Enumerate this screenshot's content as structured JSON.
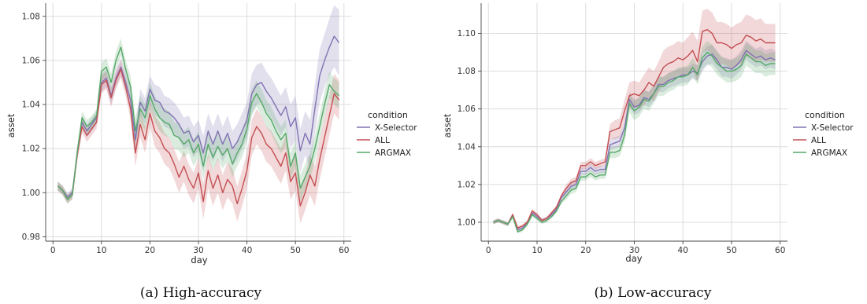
{
  "figure": {
    "captions": [
      "(a) High-accuracy",
      "(b) Low-accuracy"
    ]
  },
  "chart_data": [
    {
      "type": "line",
      "xlabel": "day",
      "ylabel": "asset",
      "xlim": [
        -1.5,
        61.5
      ],
      "ylim": [
        0.978,
        1.086
      ],
      "xticks": [
        0,
        10,
        20,
        30,
        40,
        50,
        60
      ],
      "yticks": [
        0.98,
        1.0,
        1.02,
        1.04,
        1.06,
        1.08
      ],
      "ytick_decimals": 2,
      "grid": true,
      "legend": {
        "title": "condition",
        "placement": "right"
      },
      "x": [
        1,
        2,
        3,
        4,
        5,
        6,
        7,
        8,
        9,
        10,
        11,
        12,
        13,
        14,
        15,
        16,
        17,
        18,
        19,
        20,
        21,
        22,
        23,
        24,
        25,
        26,
        27,
        28,
        29,
        30,
        31,
        32,
        33,
        34,
        35,
        36,
        37,
        38,
        39,
        40,
        41,
        42,
        43,
        44,
        45,
        46,
        47,
        48,
        49,
        50,
        51,
        52,
        53,
        54,
        55,
        56,
        57,
        58,
        59
      ],
      "series": [
        {
          "name": "X-Selector",
          "color": "#8172b2",
          "values": [
            1.003,
            1.001,
            0.998,
            1.0,
            1.018,
            1.032,
            1.028,
            1.031,
            1.034,
            1.05,
            1.052,
            1.044,
            1.052,
            1.057,
            1.05,
            1.042,
            1.024,
            1.041,
            1.037,
            1.047,
            1.042,
            1.041,
            1.037,
            1.036,
            1.034,
            1.031,
            1.027,
            1.028,
            1.023,
            1.026,
            1.018,
            1.028,
            1.022,
            1.028,
            1.022,
            1.027,
            1.02,
            1.023,
            1.028,
            1.033,
            1.045,
            1.049,
            1.05,
            1.046,
            1.043,
            1.039,
            1.035,
            1.039,
            1.03,
            1.034,
            1.019,
            1.027,
            1.022,
            1.038,
            1.053,
            1.06,
            1.066,
            1.071,
            1.068
          ],
          "band": [
            0.002,
            0.002,
            0.002,
            0.002,
            0.003,
            0.003,
            0.003,
            0.003,
            0.003,
            0.004,
            0.004,
            0.004,
            0.004,
            0.004,
            0.004,
            0.005,
            0.006,
            0.006,
            0.006,
            0.006,
            0.007,
            0.007,
            0.007,
            0.007,
            0.007,
            0.007,
            0.007,
            0.007,
            0.007,
            0.007,
            0.008,
            0.008,
            0.008,
            0.008,
            0.008,
            0.008,
            0.008,
            0.008,
            0.008,
            0.008,
            0.009,
            0.009,
            0.009,
            0.009,
            0.009,
            0.009,
            0.009,
            0.009,
            0.01,
            0.01,
            0.01,
            0.01,
            0.011,
            0.011,
            0.012,
            0.012,
            0.013,
            0.014,
            0.015
          ]
        },
        {
          "name": "ALL",
          "color": "#c44e52",
          "values": [
            1.003,
            1.001,
            0.997,
            0.999,
            1.017,
            1.03,
            1.026,
            1.029,
            1.032,
            1.049,
            1.051,
            1.043,
            1.051,
            1.056,
            1.048,
            1.038,
            1.018,
            1.031,
            1.024,
            1.036,
            1.028,
            1.025,
            1.02,
            1.018,
            1.013,
            1.007,
            1.012,
            1.006,
            1.002,
            1.009,
            0.996,
            1.01,
            1.002,
            1.008,
            1.0,
            1.006,
            1.003,
            0.995,
            1.002,
            1.01,
            1.025,
            1.03,
            1.027,
            1.022,
            1.02,
            1.016,
            1.012,
            1.018,
            1.005,
            1.009,
            0.994,
            1.0,
            1.008,
            1.003,
            1.015,
            1.025,
            1.035,
            1.045,
            1.042
          ],
          "band": [
            0.002,
            0.002,
            0.002,
            0.002,
            0.003,
            0.003,
            0.003,
            0.003,
            0.003,
            0.004,
            0.004,
            0.004,
            0.004,
            0.004,
            0.004,
            0.005,
            0.006,
            0.006,
            0.006,
            0.006,
            0.007,
            0.007,
            0.007,
            0.007,
            0.007,
            0.007,
            0.007,
            0.007,
            0.007,
            0.007,
            0.008,
            0.008,
            0.008,
            0.008,
            0.008,
            0.008,
            0.008,
            0.008,
            0.008,
            0.008,
            0.008,
            0.008,
            0.008,
            0.008,
            0.008,
            0.008,
            0.008,
            0.008,
            0.008,
            0.008,
            0.008,
            0.008,
            0.009,
            0.009,
            0.009,
            0.009,
            0.009,
            0.009,
            0.009
          ]
        },
        {
          "name": "ARGMAX",
          "color": "#55a868",
          "values": [
            1.003,
            1.001,
            0.997,
            0.999,
            1.018,
            1.034,
            1.03,
            1.032,
            1.035,
            1.055,
            1.057,
            1.05,
            1.06,
            1.066,
            1.056,
            1.048,
            1.028,
            1.038,
            1.034,
            1.044,
            1.038,
            1.034,
            1.032,
            1.031,
            1.026,
            1.025,
            1.022,
            1.024,
            1.018,
            1.022,
            1.012,
            1.022,
            1.016,
            1.021,
            1.017,
            1.02,
            1.013,
            1.018,
            1.022,
            1.029,
            1.041,
            1.045,
            1.041,
            1.036,
            1.033,
            1.028,
            1.024,
            1.027,
            1.012,
            1.018,
            1.002,
            1.007,
            1.012,
            1.02,
            1.03,
            1.04,
            1.049,
            1.046,
            1.044
          ],
          "band": [
            0.002,
            0.002,
            0.002,
            0.002,
            0.003,
            0.003,
            0.003,
            0.003,
            0.003,
            0.004,
            0.004,
            0.004,
            0.004,
            0.004,
            0.004,
            0.005,
            0.006,
            0.006,
            0.006,
            0.006,
            0.006,
            0.006,
            0.006,
            0.006,
            0.006,
            0.006,
            0.006,
            0.006,
            0.006,
            0.006,
            0.006,
            0.006,
            0.006,
            0.006,
            0.006,
            0.006,
            0.006,
            0.006,
            0.006,
            0.006,
            0.006,
            0.006,
            0.006,
            0.006,
            0.006,
            0.006,
            0.006,
            0.006,
            0.006,
            0.006,
            0.006,
            0.006,
            0.006,
            0.006,
            0.006,
            0.006,
            0.006,
            0.006,
            0.006
          ]
        }
      ]
    },
    {
      "type": "line",
      "xlabel": "day",
      "ylabel": "asset",
      "xlim": [
        -1.5,
        61.5
      ],
      "ylim": [
        0.99,
        1.116
      ],
      "xticks": [
        0,
        10,
        20,
        30,
        40,
        50,
        60
      ],
      "yticks": [
        1.0,
        1.02,
        1.04,
        1.06,
        1.08,
        1.1
      ],
      "ytick_decimals": 2,
      "grid": true,
      "legend": {
        "title": "condition",
        "placement": "right"
      },
      "x": [
        1,
        2,
        3,
        4,
        5,
        6,
        7,
        8,
        9,
        10,
        11,
        12,
        13,
        14,
        15,
        16,
        17,
        18,
        19,
        20,
        21,
        22,
        23,
        24,
        25,
        26,
        27,
        28,
        29,
        30,
        31,
        32,
        33,
        34,
        35,
        36,
        37,
        38,
        39,
        40,
        41,
        42,
        43,
        44,
        45,
        46,
        47,
        48,
        49,
        50,
        51,
        52,
        53,
        54,
        55,
        56,
        57,
        58,
        59
      ],
      "series": [
        {
          "name": "X-Selector",
          "color": "#8172b2",
          "values": [
            1.0,
            1.001,
            1.0,
            0.999,
            1.004,
            0.996,
            0.997,
            1.0,
            1.005,
            1.003,
            1.001,
            1.002,
            1.004,
            1.007,
            1.013,
            1.016,
            1.019,
            1.02,
            1.027,
            1.027,
            1.029,
            1.027,
            1.028,
            1.028,
            1.041,
            1.042,
            1.043,
            1.05,
            1.065,
            1.061,
            1.062,
            1.066,
            1.065,
            1.068,
            1.073,
            1.073,
            1.075,
            1.076,
            1.077,
            1.078,
            1.078,
            1.08,
            1.079,
            1.085,
            1.088,
            1.089,
            1.086,
            1.082,
            1.082,
            1.081,
            1.083,
            1.086,
            1.091,
            1.089,
            1.087,
            1.088,
            1.086,
            1.087,
            1.086
          ],
          "band": [
            0.001,
            0.001,
            0.001,
            0.001,
            0.001,
            0.001,
            0.001,
            0.001,
            0.001,
            0.001,
            0.001,
            0.001,
            0.001,
            0.001,
            0.001,
            0.002,
            0.002,
            0.002,
            0.002,
            0.002,
            0.002,
            0.002,
            0.002,
            0.002,
            0.003,
            0.003,
            0.003,
            0.003,
            0.004,
            0.004,
            0.004,
            0.004,
            0.004,
            0.004,
            0.004,
            0.004,
            0.004,
            0.004,
            0.004,
            0.004,
            0.004,
            0.004,
            0.004,
            0.005,
            0.005,
            0.005,
            0.005,
            0.005,
            0.005,
            0.005,
            0.005,
            0.005,
            0.005,
            0.005,
            0.005,
            0.005,
            0.005,
            0.005,
            0.005
          ]
        },
        {
          "name": "ALL",
          "color": "#c44e52",
          "values": [
            1.0,
            1.001,
            1.0,
            0.999,
            1.004,
            0.997,
            0.998,
            1.0,
            1.006,
            1.004,
            1.001,
            1.002,
            1.005,
            1.008,
            1.014,
            1.018,
            1.021,
            1.022,
            1.03,
            1.03,
            1.032,
            1.03,
            1.031,
            1.032,
            1.048,
            1.049,
            1.05,
            1.059,
            1.067,
            1.068,
            1.067,
            1.07,
            1.074,
            1.072,
            1.077,
            1.082,
            1.084,
            1.085,
            1.087,
            1.086,
            1.088,
            1.091,
            1.085,
            1.101,
            1.102,
            1.1,
            1.095,
            1.095,
            1.094,
            1.092,
            1.094,
            1.095,
            1.099,
            1.098,
            1.096,
            1.097,
            1.095,
            1.095,
            1.095
          ],
          "band": [
            0.001,
            0.001,
            0.001,
            0.001,
            0.001,
            0.001,
            0.001,
            0.001,
            0.001,
            0.001,
            0.001,
            0.001,
            0.001,
            0.001,
            0.001,
            0.002,
            0.002,
            0.002,
            0.002,
            0.002,
            0.002,
            0.002,
            0.002,
            0.002,
            0.004,
            0.005,
            0.005,
            0.006,
            0.007,
            0.007,
            0.007,
            0.008,
            0.008,
            0.008,
            0.008,
            0.009,
            0.009,
            0.009,
            0.009,
            0.009,
            0.01,
            0.01,
            0.011,
            0.011,
            0.011,
            0.011,
            0.011,
            0.011,
            0.011,
            0.011,
            0.011,
            0.011,
            0.011,
            0.011,
            0.011,
            0.011,
            0.01,
            0.01,
            0.01
          ]
        },
        {
          "name": "ARGMAX",
          "color": "#55a868",
          "values": [
            1.0,
            1.001,
            1.0,
            0.999,
            1.003,
            0.995,
            0.996,
            0.999,
            1.004,
            1.002,
            1.0,
            1.001,
            1.003,
            1.006,
            1.011,
            1.014,
            1.017,
            1.018,
            1.024,
            1.024,
            1.026,
            1.024,
            1.025,
            1.025,
            1.037,
            1.037,
            1.038,
            1.046,
            1.063,
            1.059,
            1.061,
            1.065,
            1.064,
            1.068,
            1.072,
            1.072,
            1.074,
            1.075,
            1.077,
            1.077,
            1.078,
            1.082,
            1.078,
            1.087,
            1.09,
            1.088,
            1.084,
            1.082,
            1.08,
            1.08,
            1.081,
            1.083,
            1.089,
            1.087,
            1.085,
            1.085,
            1.083,
            1.084,
            1.084
          ],
          "band": [
            0.001,
            0.001,
            0.001,
            0.001,
            0.001,
            0.001,
            0.001,
            0.001,
            0.001,
            0.001,
            0.001,
            0.001,
            0.001,
            0.001,
            0.001,
            0.002,
            0.002,
            0.002,
            0.002,
            0.002,
            0.002,
            0.002,
            0.002,
            0.002,
            0.003,
            0.003,
            0.003,
            0.004,
            0.005,
            0.005,
            0.005,
            0.005,
            0.005,
            0.005,
            0.005,
            0.005,
            0.005,
            0.005,
            0.005,
            0.005,
            0.005,
            0.005,
            0.005,
            0.006,
            0.006,
            0.006,
            0.006,
            0.006,
            0.006,
            0.006,
            0.006,
            0.006,
            0.006,
            0.006,
            0.006,
            0.006,
            0.006,
            0.006,
            0.006
          ]
        }
      ]
    }
  ]
}
